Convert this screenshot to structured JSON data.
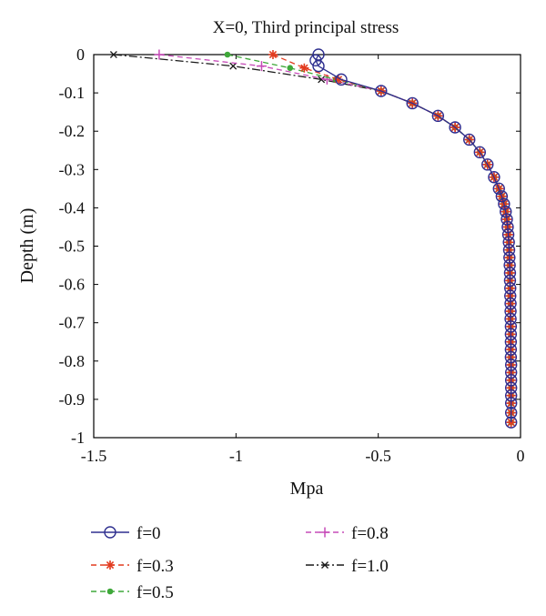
{
  "chart_data": {
    "type": "line",
    "title": "X=0, Third principal stress",
    "xlabel": "Mpa",
    "ylabel": "Depth (m)",
    "xlim": [
      -1.5,
      0
    ],
    "ylim": [
      -1,
      0
    ],
    "xticks": [
      -1.5,
      -1,
      -0.5,
      0
    ],
    "xtick_labels": [
      "-1.5",
      "-1",
      "-0.5",
      "0"
    ],
    "yticks": [
      0,
      -0.1,
      -0.2,
      -0.3,
      -0.4,
      -0.5,
      -0.6,
      -0.7,
      -0.8,
      -0.9,
      -1
    ],
    "ytick_labels": [
      "0",
      "-0.1",
      "-0.2",
      "-0.3",
      "-0.4",
      "-0.5",
      "-0.6",
      "-0.7",
      "-0.8",
      "-0.9",
      "-1"
    ],
    "grid": false,
    "legend_position": "bottom",
    "series": [
      {
        "name": "f=0",
        "color": "#2e2f8f",
        "marker": "circle",
        "line": "solid",
        "points": [
          [
            -0.71,
            0
          ],
          [
            -0.72,
            -0.015
          ],
          [
            -0.71,
            -0.03
          ],
          [
            -0.63,
            -0.065
          ],
          [
            -0.49,
            -0.095
          ],
          [
            -0.38,
            -0.127
          ],
          [
            -0.29,
            -0.16
          ],
          [
            -0.23,
            -0.19
          ],
          [
            -0.18,
            -0.222
          ],
          [
            -0.143,
            -0.255
          ],
          [
            -0.116,
            -0.287
          ],
          [
            -0.093,
            -0.32
          ],
          [
            -0.076,
            -0.35
          ],
          [
            -0.066,
            -0.37
          ],
          [
            -0.058,
            -0.39
          ],
          [
            -0.052,
            -0.41
          ],
          [
            -0.048,
            -0.43
          ],
          [
            -0.045,
            -0.45
          ],
          [
            -0.043,
            -0.47
          ],
          [
            -0.041,
            -0.49
          ],
          [
            -0.04,
            -0.51
          ],
          [
            -0.039,
            -0.53
          ],
          [
            -0.038,
            -0.55
          ],
          [
            -0.037,
            -0.57
          ],
          [
            -0.037,
            -0.59
          ],
          [
            -0.036,
            -0.61
          ],
          [
            -0.036,
            -0.63
          ],
          [
            -0.035,
            -0.65
          ],
          [
            -0.035,
            -0.67
          ],
          [
            -0.035,
            -0.69
          ],
          [
            -0.034,
            -0.71
          ],
          [
            -0.034,
            -0.73
          ],
          [
            -0.034,
            -0.75
          ],
          [
            -0.034,
            -0.77
          ],
          [
            -0.034,
            -0.79
          ],
          [
            -0.033,
            -0.81
          ],
          [
            -0.033,
            -0.83
          ],
          [
            -0.033,
            -0.85
          ],
          [
            -0.033,
            -0.87
          ],
          [
            -0.033,
            -0.89
          ],
          [
            -0.033,
            -0.91
          ],
          [
            -0.033,
            -0.935
          ],
          [
            -0.033,
            -0.96
          ]
        ]
      },
      {
        "name": "f=0.3",
        "color": "#e23b1f",
        "marker": "star",
        "line": "dashed",
        "points": [
          [
            -0.87,
            0
          ],
          [
            -0.76,
            -0.035
          ],
          [
            -0.64,
            -0.065
          ],
          [
            -0.49,
            -0.095
          ],
          [
            -0.38,
            -0.127
          ],
          [
            -0.29,
            -0.16
          ],
          [
            -0.23,
            -0.19
          ],
          [
            -0.18,
            -0.222
          ],
          [
            -0.143,
            -0.255
          ],
          [
            -0.116,
            -0.287
          ],
          [
            -0.093,
            -0.32
          ],
          [
            -0.076,
            -0.35
          ],
          [
            -0.066,
            -0.37
          ],
          [
            -0.058,
            -0.39
          ],
          [
            -0.052,
            -0.41
          ],
          [
            -0.048,
            -0.43
          ],
          [
            -0.045,
            -0.45
          ],
          [
            -0.043,
            -0.47
          ],
          [
            -0.041,
            -0.49
          ],
          [
            -0.04,
            -0.51
          ],
          [
            -0.039,
            -0.53
          ],
          [
            -0.038,
            -0.55
          ],
          [
            -0.037,
            -0.57
          ],
          [
            -0.037,
            -0.59
          ],
          [
            -0.036,
            -0.61
          ],
          [
            -0.036,
            -0.63
          ],
          [
            -0.035,
            -0.65
          ],
          [
            -0.035,
            -0.67
          ],
          [
            -0.035,
            -0.69
          ],
          [
            -0.034,
            -0.71
          ],
          [
            -0.034,
            -0.73
          ],
          [
            -0.034,
            -0.75
          ],
          [
            -0.034,
            -0.77
          ],
          [
            -0.034,
            -0.79
          ],
          [
            -0.033,
            -0.81
          ],
          [
            -0.033,
            -0.83
          ],
          [
            -0.033,
            -0.85
          ],
          [
            -0.033,
            -0.87
          ],
          [
            -0.033,
            -0.89
          ],
          [
            -0.033,
            -0.91
          ],
          [
            -0.033,
            -0.935
          ],
          [
            -0.033,
            -0.96
          ]
        ]
      },
      {
        "name": "f=0.5",
        "color": "#3fa83a",
        "marker": "dot",
        "line": "dashed",
        "points": [
          [
            -1.03,
            0
          ],
          [
            -0.81,
            -0.035
          ],
          [
            -0.65,
            -0.065
          ],
          [
            -0.49,
            -0.095
          ],
          [
            -0.38,
            -0.127
          ],
          [
            -0.29,
            -0.16
          ],
          [
            -0.23,
            -0.19
          ],
          [
            -0.18,
            -0.222
          ],
          [
            -0.143,
            -0.255
          ],
          [
            -0.116,
            -0.287
          ],
          [
            -0.093,
            -0.32
          ],
          [
            -0.076,
            -0.35
          ],
          [
            -0.066,
            -0.37
          ],
          [
            -0.058,
            -0.39
          ],
          [
            -0.052,
            -0.41
          ],
          [
            -0.048,
            -0.43
          ],
          [
            -0.045,
            -0.45
          ],
          [
            -0.043,
            -0.47
          ],
          [
            -0.041,
            -0.49
          ],
          [
            -0.04,
            -0.51
          ],
          [
            -0.039,
            -0.53
          ],
          [
            -0.038,
            -0.55
          ],
          [
            -0.037,
            -0.57
          ],
          [
            -0.037,
            -0.59
          ],
          [
            -0.036,
            -0.61
          ],
          [
            -0.036,
            -0.63
          ],
          [
            -0.035,
            -0.65
          ],
          [
            -0.035,
            -0.67
          ],
          [
            -0.035,
            -0.69
          ],
          [
            -0.034,
            -0.71
          ],
          [
            -0.034,
            -0.73
          ],
          [
            -0.034,
            -0.75
          ],
          [
            -0.034,
            -0.77
          ],
          [
            -0.034,
            -0.79
          ],
          [
            -0.033,
            -0.81
          ],
          [
            -0.033,
            -0.83
          ],
          [
            -0.033,
            -0.85
          ],
          [
            -0.033,
            -0.87
          ],
          [
            -0.033,
            -0.89
          ],
          [
            -0.033,
            -0.91
          ],
          [
            -0.033,
            -0.935
          ],
          [
            -0.033,
            -0.96
          ]
        ]
      },
      {
        "name": "f=0.8",
        "color": "#c64bb8",
        "marker": "plus",
        "line": "dashed",
        "points": [
          [
            -1.27,
            0
          ],
          [
            -0.91,
            -0.03
          ],
          [
            -0.68,
            -0.065
          ],
          [
            -0.49,
            -0.095
          ],
          [
            -0.38,
            -0.127
          ],
          [
            -0.29,
            -0.16
          ],
          [
            -0.23,
            -0.19
          ],
          [
            -0.18,
            -0.222
          ],
          [
            -0.143,
            -0.255
          ],
          [
            -0.116,
            -0.287
          ],
          [
            -0.093,
            -0.32
          ],
          [
            -0.076,
            -0.35
          ],
          [
            -0.066,
            -0.37
          ],
          [
            -0.058,
            -0.39
          ],
          [
            -0.052,
            -0.41
          ],
          [
            -0.048,
            -0.43
          ],
          [
            -0.045,
            -0.45
          ],
          [
            -0.043,
            -0.47
          ],
          [
            -0.041,
            -0.49
          ],
          [
            -0.04,
            -0.51
          ],
          [
            -0.039,
            -0.53
          ],
          [
            -0.038,
            -0.55
          ],
          [
            -0.037,
            -0.57
          ],
          [
            -0.037,
            -0.59
          ],
          [
            -0.036,
            -0.61
          ],
          [
            -0.036,
            -0.63
          ],
          [
            -0.035,
            -0.65
          ],
          [
            -0.035,
            -0.67
          ],
          [
            -0.035,
            -0.69
          ],
          [
            -0.034,
            -0.71
          ],
          [
            -0.034,
            -0.73
          ],
          [
            -0.034,
            -0.75
          ],
          [
            -0.034,
            -0.77
          ],
          [
            -0.034,
            -0.79
          ],
          [
            -0.033,
            -0.81
          ],
          [
            -0.033,
            -0.83
          ],
          [
            -0.033,
            -0.85
          ],
          [
            -0.033,
            -0.87
          ],
          [
            -0.033,
            -0.89
          ],
          [
            -0.033,
            -0.91
          ],
          [
            -0.033,
            -0.935
          ],
          [
            -0.033,
            -0.96
          ]
        ]
      },
      {
        "name": "f=1.0",
        "color": "#1a1a1a",
        "marker": "x",
        "line": "dashdot",
        "points": [
          [
            -1.43,
            0
          ],
          [
            -1.01,
            -0.03
          ],
          [
            -0.7,
            -0.065
          ],
          [
            -0.49,
            -0.095
          ],
          [
            -0.38,
            -0.127
          ],
          [
            -0.29,
            -0.16
          ],
          [
            -0.23,
            -0.19
          ],
          [
            -0.18,
            -0.222
          ],
          [
            -0.143,
            -0.255
          ],
          [
            -0.116,
            -0.287
          ],
          [
            -0.093,
            -0.32
          ],
          [
            -0.076,
            -0.35
          ],
          [
            -0.066,
            -0.37
          ],
          [
            -0.058,
            -0.39
          ],
          [
            -0.052,
            -0.41
          ],
          [
            -0.048,
            -0.43
          ],
          [
            -0.045,
            -0.45
          ],
          [
            -0.043,
            -0.47
          ],
          [
            -0.041,
            -0.49
          ],
          [
            -0.04,
            -0.51
          ],
          [
            -0.039,
            -0.53
          ],
          [
            -0.038,
            -0.55
          ],
          [
            -0.037,
            -0.57
          ],
          [
            -0.037,
            -0.59
          ],
          [
            -0.036,
            -0.61
          ],
          [
            -0.036,
            -0.63
          ],
          [
            -0.035,
            -0.65
          ],
          [
            -0.035,
            -0.67
          ],
          [
            -0.035,
            -0.69
          ],
          [
            -0.034,
            -0.71
          ],
          [
            -0.034,
            -0.73
          ],
          [
            -0.034,
            -0.75
          ],
          [
            -0.034,
            -0.77
          ],
          [
            -0.034,
            -0.79
          ],
          [
            -0.033,
            -0.81
          ],
          [
            -0.033,
            -0.83
          ],
          [
            -0.033,
            -0.85
          ],
          [
            -0.033,
            -0.87
          ],
          [
            -0.033,
            -0.89
          ],
          [
            -0.033,
            -0.91
          ],
          [
            -0.033,
            -0.935
          ],
          [
            -0.033,
            -0.96
          ]
        ]
      }
    ]
  }
}
